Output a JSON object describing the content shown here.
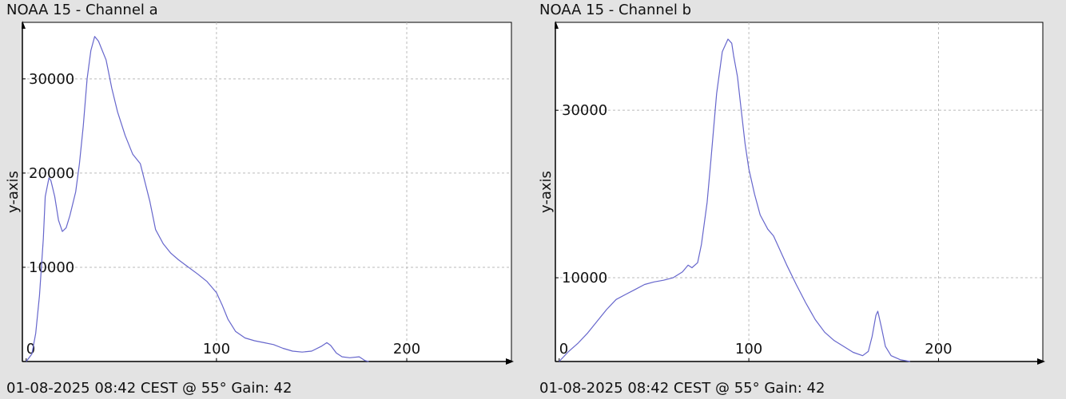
{
  "colors": {
    "background": "#e3e3e3",
    "plot_area": "#ffffff",
    "line": "#6666cc",
    "grid": "#bbbbbb",
    "axis": "#000000"
  },
  "panels": [
    {
      "title": "NOAA 15 - Channel a",
      "footer": "01-08-2025 08:42 CEST @ 55° Gain: 42"
    },
    {
      "title": "NOAA 15 - Channel b",
      "footer": "01-08-2025 08:42 CEST @ 55° Gain: 42"
    }
  ],
  "chart_data": [
    {
      "type": "line",
      "title": "NOAA 15 - Channel a",
      "xlabel": "",
      "ylabel": "y-axis",
      "xlim": [
        -2,
        255
      ],
      "ylim": [
        0,
        36000
      ],
      "xticks": [
        0,
        100,
        200
      ],
      "yticks": [
        10000,
        20000,
        30000
      ],
      "grid": true,
      "series": [
        {
          "x": [
            0,
            3,
            5,
            7,
            9,
            10,
            12,
            13,
            15,
            17,
            19,
            21,
            23,
            26,
            28,
            30,
            32,
            34,
            36,
            38,
            40,
            42,
            45,
            48,
            52,
            56,
            60,
            65,
            68,
            72,
            76,
            80,
            84,
            90,
            95,
            100,
            103,
            106,
            110,
            115,
            120,
            125,
            130,
            135,
            140,
            145,
            150,
            155,
            158,
            160,
            163,
            166,
            170,
            175,
            178,
            180
          ],
          "values": [
            0,
            800,
            3000,
            7000,
            13000,
            17500,
            19500,
            19200,
            17500,
            15000,
            13800,
            14200,
            15500,
            18000,
            21000,
            25000,
            30000,
            33000,
            34500,
            34000,
            33000,
            32000,
            29000,
            26500,
            24000,
            22000,
            21000,
            17000,
            14000,
            12500,
            11500,
            10800,
            10200,
            9300,
            8500,
            7300,
            6000,
            4500,
            3200,
            2500,
            2200,
            2000,
            1800,
            1400,
            1100,
            1000,
            1100,
            1600,
            2000,
            1700,
            900,
            500,
            400,
            500,
            100,
            0
          ]
        }
      ]
    },
    {
      "type": "line",
      "title": "NOAA 15 - Channel b",
      "xlabel": "",
      "ylabel": "y-axis",
      "xlim": [
        -2,
        255
      ],
      "ylim": [
        0,
        40500
      ],
      "xticks": [
        0,
        100,
        200
      ],
      "yticks": [
        10000,
        30000
      ],
      "grid": true,
      "series": [
        {
          "x": [
            0,
            5,
            10,
            15,
            20,
            25,
            30,
            35,
            40,
            45,
            50,
            55,
            60,
            65,
            68,
            70,
            73,
            75,
            78,
            80,
            83,
            86,
            89,
            91,
            92,
            94,
            96,
            98,
            100,
            103,
            106,
            110,
            113,
            116,
            120,
            125,
            130,
            135,
            140,
            145,
            150,
            155,
            160,
            163,
            165,
            167,
            168,
            170,
            172,
            175,
            180,
            185
          ],
          "values": [
            0,
            1200,
            2200,
            3400,
            4800,
            6200,
            7400,
            8000,
            8600,
            9200,
            9500,
            9700,
            10000,
            10700,
            11500,
            11200,
            11800,
            14000,
            19000,
            24000,
            32000,
            37000,
            38500,
            38000,
            36500,
            34000,
            30000,
            26000,
            23000,
            20000,
            17500,
            15800,
            15000,
            13500,
            11500,
            9200,
            7000,
            5000,
            3500,
            2500,
            1800,
            1100,
            700,
            1200,
            3000,
            5500,
            6000,
            4000,
            1800,
            700,
            200,
            0
          ]
        }
      ]
    }
  ]
}
